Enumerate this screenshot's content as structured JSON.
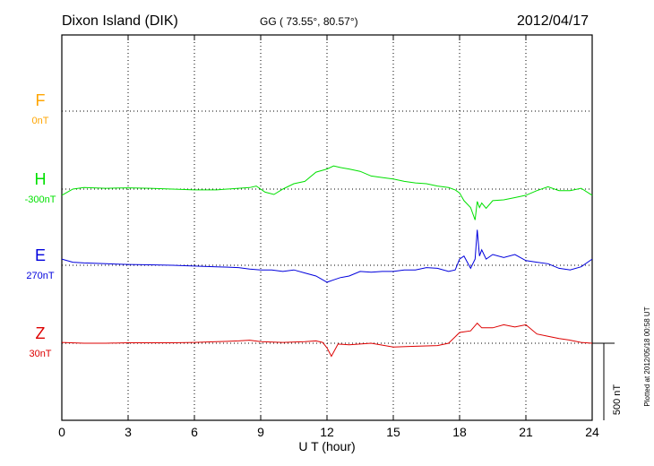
{
  "header": {
    "station": "Dixon Island (DIK)",
    "coords": "GG ( 73.55°,  80.57°)",
    "date": "2012/04/17"
  },
  "footer": {
    "plotted": "Plotted at 2012/05/18 00:58 UT"
  },
  "chart_data": {
    "type": "line",
    "title": "Dixon Island (DIK)",
    "xlabel": "U T (hour)",
    "ylabel": "",
    "xlim": [
      0,
      24
    ],
    "xticks": [
      0,
      3,
      6,
      9,
      12,
      15,
      18,
      21,
      24
    ],
    "scale_bar": "500 nT",
    "grid": true,
    "series": [
      {
        "name": "F",
        "baseline": "0nT",
        "color": "#ffa500",
        "x": [],
        "y": []
      },
      {
        "name": "H",
        "baseline": "-300nT",
        "color": "#00e000",
        "x": [
          0,
          0.5,
          1,
          2,
          3,
          4,
          5,
          6,
          7,
          8,
          8.5,
          8.8,
          9.2,
          9.6,
          10,
          10.5,
          11,
          11.5,
          12,
          12.3,
          12.6,
          13,
          13.5,
          14,
          14.5,
          15,
          15.5,
          16,
          16.5,
          17,
          17.5,
          17.8,
          18,
          18.2,
          18.5,
          18.7,
          18.8,
          18.9,
          19,
          19.2,
          19.5,
          20,
          20.5,
          21,
          21.5,
          22,
          22.5,
          23,
          23.5,
          24
        ],
        "y": [
          -40,
          0,
          10,
          5,
          8,
          5,
          0,
          -5,
          -5,
          5,
          10,
          20,
          -20,
          -35,
          0,
          35,
          50,
          110,
          130,
          150,
          140,
          130,
          115,
          85,
          75,
          65,
          50,
          40,
          35,
          20,
          10,
          -5,
          -25,
          -75,
          -120,
          -200,
          -80,
          -120,
          -90,
          -125,
          -75,
          -70,
          -55,
          -40,
          -10,
          15,
          -10,
          -10,
          5,
          -40
        ]
      },
      {
        "name": "E",
        "baseline": "270nT",
        "color": "#0000dd",
        "x": [
          0,
          0.5,
          1,
          2,
          3,
          4,
          5,
          6,
          7,
          8,
          8.5,
          9,
          9.5,
          10,
          10.5,
          11,
          11.5,
          12,
          12.3,
          12.6,
          13,
          13.5,
          14,
          14.5,
          15,
          15.5,
          16,
          16.5,
          17,
          17.5,
          17.8,
          18,
          18.2,
          18.5,
          18.7,
          18.8,
          18.9,
          19,
          19.2,
          19.5,
          20,
          20.5,
          21,
          21.5,
          22,
          22.5,
          23,
          23.5,
          24
        ],
        "y": [
          40,
          20,
          15,
          10,
          5,
          3,
          0,
          -5,
          -10,
          -15,
          -25,
          -30,
          -30,
          -40,
          -30,
          -50,
          -70,
          -110,
          -95,
          -80,
          -70,
          -40,
          -45,
          -40,
          -40,
          -30,
          -30,
          -15,
          -20,
          -40,
          -30,
          40,
          60,
          -20,
          40,
          230,
          60,
          100,
          40,
          70,
          50,
          70,
          30,
          20,
          10,
          -20,
          -30,
          -10,
          40
        ]
      },
      {
        "name": "Z",
        "baseline": "30nT",
        "color": "#dd0000",
        "x": [
          0,
          1,
          2,
          3,
          4,
          5,
          6,
          7,
          8,
          8.5,
          9,
          10,
          11,
          11.5,
          11.8,
          12,
          12.2,
          12.5,
          13,
          14,
          15,
          16,
          17,
          17.5,
          18,
          18.5,
          18.8,
          19,
          19.5,
          20,
          20.5,
          21,
          21.5,
          22,
          22.5,
          23,
          23.5,
          24
        ],
        "y": [
          5,
          0,
          0,
          3,
          3,
          3,
          5,
          10,
          15,
          20,
          10,
          5,
          10,
          15,
          5,
          -30,
          -85,
          -5,
          -10,
          0,
          -25,
          -20,
          -15,
          0,
          70,
          80,
          130,
          100,
          100,
          120,
          105,
          120,
          60,
          45,
          30,
          20,
          5,
          0
        ]
      }
    ]
  }
}
